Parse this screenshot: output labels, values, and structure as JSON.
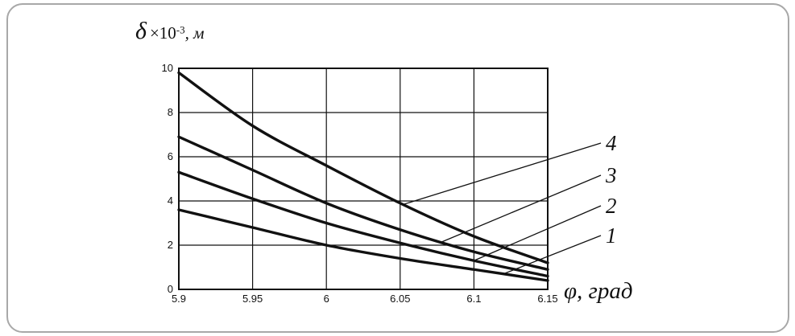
{
  "chart_data": {
    "type": "line",
    "title": "",
    "ylabel_parts": {
      "symbol": "δ",
      "times": "×10",
      "exponent": "-3",
      "unit": ", м"
    },
    "xlabel": "φ, град",
    "xlim": [
      5.9,
      6.15
    ],
    "ylim": [
      0,
      10
    ],
    "grid": true,
    "legend_position": "right-annotations",
    "x": [
      5.9,
      5.95,
      6.0,
      6.05,
      6.1,
      6.15
    ],
    "x_tick_labels": [
      "5.9",
      "5.95",
      "6",
      "6.05",
      "6.1",
      "6.15"
    ],
    "y_ticks": [
      0,
      2,
      4,
      6,
      8,
      10
    ],
    "y_tick_labels": [
      "0",
      "2",
      "4",
      "6",
      "8",
      "10"
    ],
    "series": [
      {
        "name": "1",
        "values": [
          3.6,
          2.8,
          2.0,
          1.4,
          0.9,
          0.4
        ]
      },
      {
        "name": "2",
        "values": [
          5.3,
          4.1,
          3.0,
          2.1,
          1.3,
          0.6
        ]
      },
      {
        "name": "3",
        "values": [
          6.9,
          5.4,
          3.9,
          2.7,
          1.7,
          0.9
        ]
      },
      {
        "name": "4",
        "values": [
          9.8,
          7.4,
          5.6,
          3.9,
          2.4,
          1.2
        ]
      }
    ],
    "annotations": [
      {
        "label": "4",
        "series": "4"
      },
      {
        "label": "3",
        "series": "3"
      },
      {
        "label": "2",
        "series": "2"
      },
      {
        "label": "1",
        "series": "1"
      }
    ],
    "colors": {
      "line": "#111111",
      "grid": "#111111",
      "frame": "#111111",
      "text": "#111111",
      "card_border": "#a8a8a8"
    }
  }
}
